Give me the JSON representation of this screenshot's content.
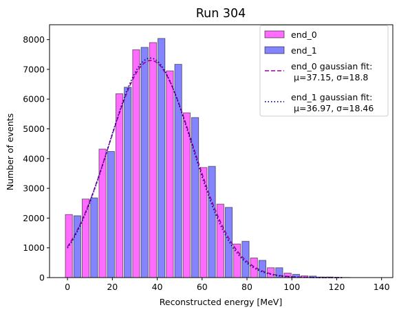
{
  "chart_data": {
    "type": "bar",
    "title": "Run 304",
    "xlabel": "Reconstructed energy [MeV]",
    "ylabel": "Number of events",
    "xlim": [
      -8,
      145
    ],
    "ylim": [
      0,
      8500
    ],
    "xticks": [
      0,
      20,
      40,
      60,
      80,
      100,
      120,
      140
    ],
    "yticks": [
      0,
      1000,
      2000,
      3000,
      4000,
      5000,
      6000,
      7000,
      8000
    ],
    "bin_centers": [
      2.5,
      10,
      17.5,
      25,
      32.5,
      40,
      47.5,
      55,
      62.5,
      70,
      77.5,
      85,
      92.5,
      100,
      107.5,
      115,
      122.5,
      130,
      137.5
    ],
    "bin_width": 7.5,
    "series": [
      {
        "name": "end_0",
        "color": "#ff33ff",
        "values": [
          2120,
          2640,
          4320,
          6180,
          7660,
          7900,
          6950,
          5540,
          3700,
          2470,
          1130,
          660,
          330,
          150,
          60,
          20,
          5,
          0,
          0
        ]
      },
      {
        "name": "end_1",
        "color": "#5555ff",
        "values": [
          2080,
          2680,
          4240,
          6400,
          7740,
          8040,
          7170,
          5380,
          3740,
          2360,
          1220,
          580,
          330,
          110,
          50,
          20,
          5,
          0,
          0
        ]
      }
    ],
    "fits": [
      {
        "name": "end_0 gaussian fit:",
        "params": "μ=37.15, σ=18.8",
        "mu": 37.15,
        "sigma": 18.8,
        "amplitude": 7300,
        "x_range": [
          0,
          122.5
        ],
        "color": "#990099",
        "style": "dashed"
      },
      {
        "name": "end_1 gaussian fit:",
        "params": "μ=36.97, σ=18.46",
        "mu": 36.97,
        "sigma": 18.46,
        "amplitude": 7380,
        "x_range": [
          0,
          122.5
        ],
        "color": "#000099",
        "style": "dotted"
      }
    ],
    "legend_position": "top-right"
  }
}
